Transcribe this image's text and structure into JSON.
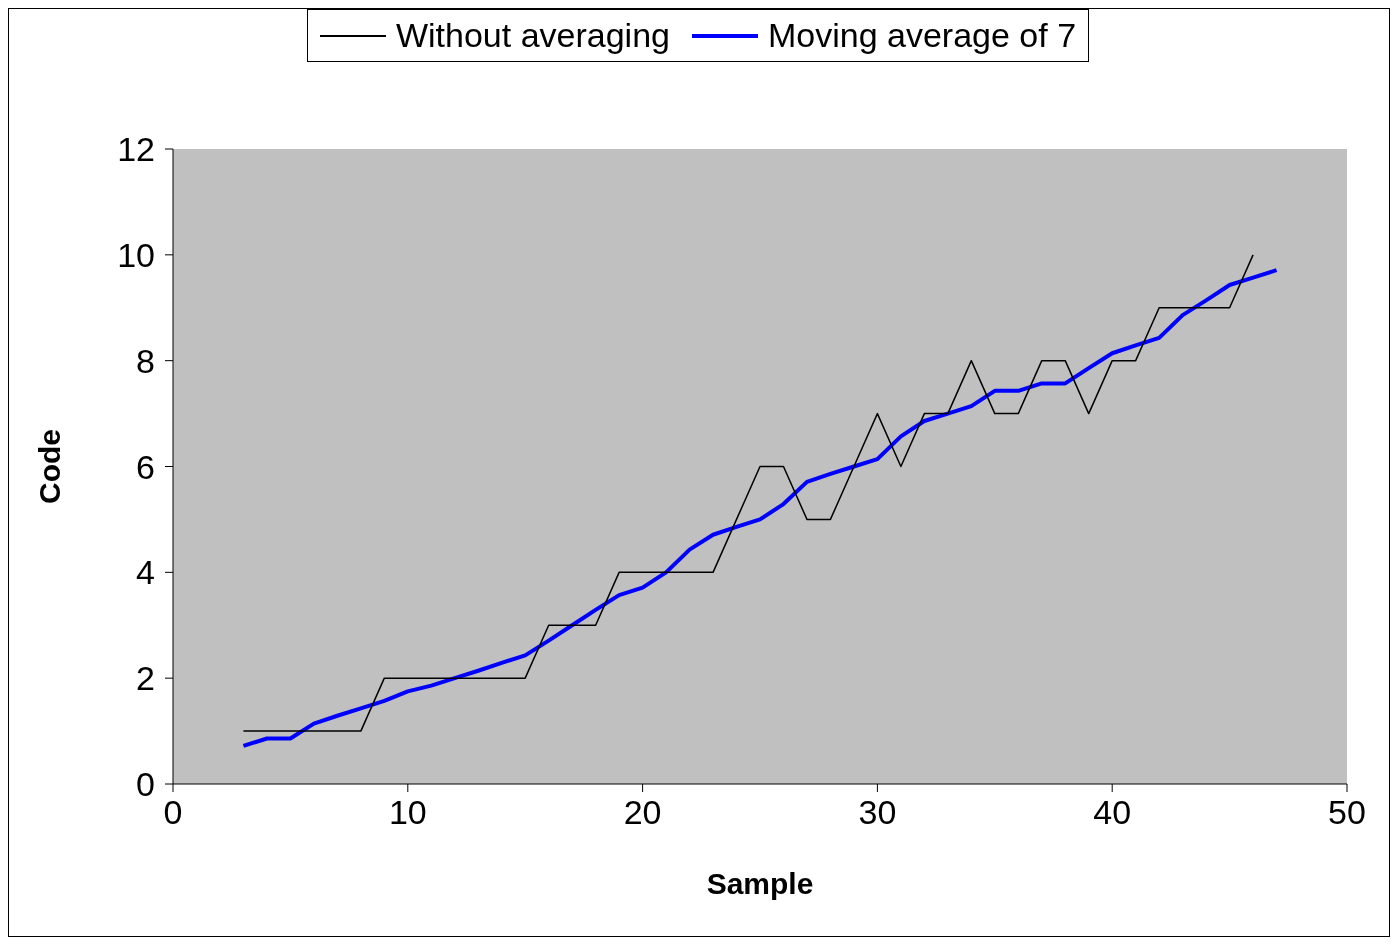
{
  "chart_data": {
    "type": "line",
    "xlabel": "Sample",
    "ylabel": "Code",
    "xlim": [
      0,
      50
    ],
    "xticks": [
      0,
      10,
      20,
      30,
      40,
      50
    ],
    "ylim": [
      0,
      12
    ],
    "yticks": [
      0,
      2,
      4,
      6,
      8,
      10,
      12
    ],
    "legend": "top",
    "grid": false,
    "series": [
      {
        "name": "Without averaging",
        "color": "#000000",
        "x": [
          3,
          4,
          5,
          6,
          7,
          8,
          9,
          10,
          11,
          12,
          13,
          14,
          15,
          16,
          17,
          18,
          19,
          20,
          21,
          22,
          23,
          24,
          25,
          26,
          27,
          28,
          29,
          30,
          31,
          32,
          33,
          34,
          35,
          36,
          37,
          38,
          39,
          40,
          41,
          42,
          43,
          44,
          45,
          46
        ],
        "values": [
          1,
          1,
          1,
          1,
          1,
          1,
          2,
          2,
          2,
          2,
          2,
          2,
          2,
          3,
          3,
          3,
          4,
          4,
          4,
          4,
          4,
          5,
          6,
          6,
          5,
          5,
          6,
          7,
          6,
          7,
          7,
          8,
          7,
          7,
          8,
          8,
          7,
          8,
          8,
          9,
          9,
          9,
          9,
          10
        ]
      },
      {
        "name": "Moving average of 7",
        "color": "#0000ff",
        "x": [
          3,
          4,
          5,
          6,
          7,
          8,
          9,
          10,
          11,
          12,
          13,
          14,
          15,
          16,
          17,
          18,
          19,
          20,
          21,
          22,
          23,
          24,
          25,
          26,
          27,
          28,
          29,
          30,
          31,
          32,
          33,
          34,
          35,
          36,
          37,
          38,
          39,
          40,
          41,
          42,
          43,
          44,
          45,
          46,
          47
        ],
        "values": [
          0.72,
          0.86,
          0.86,
          1.14,
          1.29,
          1.43,
          1.57,
          1.75,
          1.86,
          2,
          2.14,
          2.29,
          2.43,
          2.71,
          3,
          3.29,
          3.57,
          3.71,
          4,
          4.43,
          4.71,
          4.86,
          5,
          5.29,
          5.71,
          5.86,
          6,
          6.14,
          6.57,
          6.86,
          7,
          7.14,
          7.43,
          7.43,
          7.57,
          7.57,
          7.86,
          8.14,
          8.29,
          8.43,
          8.86,
          9.14,
          9.43,
          9.57,
          9.71
        ]
      }
    ]
  }
}
